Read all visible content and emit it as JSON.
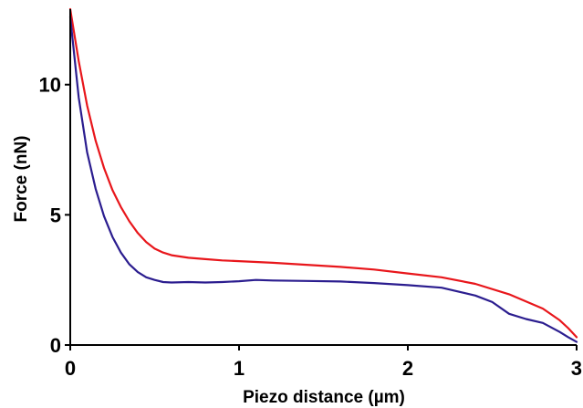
{
  "chart_data": {
    "type": "line",
    "title": "",
    "xlabel": "Piezo distance (µm)",
    "ylabel": "Force (nN)",
    "xlim": [
      0,
      3
    ],
    "ylim": [
      0,
      12.9
    ],
    "xticks": [
      0,
      1,
      2,
      3
    ],
    "xtick_labels": [
      "0",
      "1",
      "2",
      "3"
    ],
    "yticks": [
      0,
      5,
      10
    ],
    "ytick_labels": [
      "0",
      "5",
      "10"
    ],
    "grid": false,
    "legend": "none",
    "series": [
      {
        "color": "#e8161b",
        "x": [
          0,
          0.05,
          0.1,
          0.15,
          0.2,
          0.25,
          0.3,
          0.35,
          0.4,
          0.45,
          0.5,
          0.55,
          0.6,
          0.7,
          0.8,
          0.9,
          1.0,
          1.2,
          1.4,
          1.6,
          1.8,
          2.0,
          2.2,
          2.4,
          2.6,
          2.8,
          2.9,
          2.95,
          3.0
        ],
        "y": [
          12.9,
          10.9,
          9.2,
          7.85,
          6.8,
          5.95,
          5.3,
          4.75,
          4.3,
          3.95,
          3.7,
          3.55,
          3.45,
          3.35,
          3.3,
          3.25,
          3.22,
          3.16,
          3.08,
          3.0,
          2.9,
          2.75,
          2.6,
          2.35,
          1.95,
          1.4,
          0.95,
          0.65,
          0.3
        ]
      },
      {
        "color": "#2b1d8f",
        "x": [
          0,
          0.05,
          0.1,
          0.15,
          0.2,
          0.25,
          0.3,
          0.35,
          0.4,
          0.45,
          0.5,
          0.55,
          0.6,
          0.7,
          0.8,
          0.9,
          1.0,
          1.1,
          1.2,
          1.4,
          1.6,
          1.8,
          2.0,
          2.2,
          2.4,
          2.5,
          2.6,
          2.7,
          2.8,
          2.9,
          2.95,
          3.0
        ],
        "y": [
          12.6,
          9.5,
          7.4,
          6.0,
          4.95,
          4.15,
          3.55,
          3.1,
          2.8,
          2.6,
          2.5,
          2.42,
          2.4,
          2.42,
          2.4,
          2.42,
          2.45,
          2.5,
          2.48,
          2.46,
          2.44,
          2.38,
          2.3,
          2.2,
          1.9,
          1.65,
          1.2,
          1.0,
          0.85,
          0.5,
          0.3,
          0.12
        ]
      }
    ]
  }
}
